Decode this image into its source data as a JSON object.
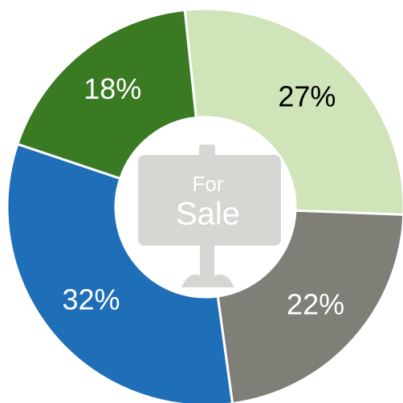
{
  "chart_data": {
    "type": "donut",
    "values": [
      27,
      22,
      32,
      18
    ],
    "value_labels": [
      "27%",
      "22%",
      "32%",
      "18%"
    ],
    "colors": [
      "#cfe4b8",
      "#7f7f78",
      "#1f6fb8",
      "#3a7a22"
    ],
    "label_colors": [
      "#000000",
      "#ffffff",
      "#ffffff",
      "#ffffff"
    ],
    "icon_text": [
      "For",
      "Sale"
    ]
  }
}
